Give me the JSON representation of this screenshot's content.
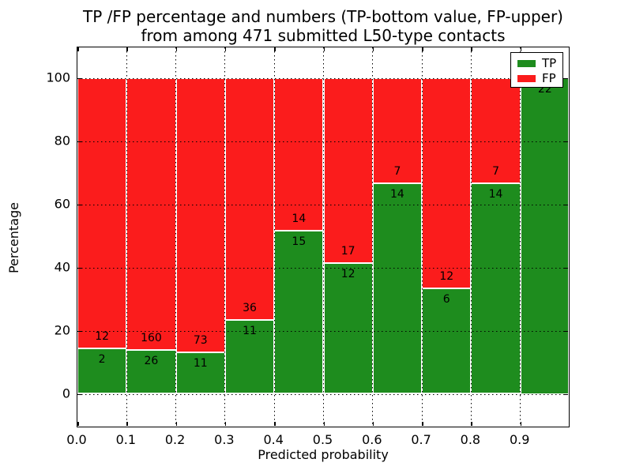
{
  "chart_data": {
    "type": "bar",
    "stacked": true,
    "normalized": "each bin scaled to 100%",
    "title_line1": "TP /FP percentage and numbers (TP-bottom value, FP-upper)",
    "title_line2": "from among 471 submitted L50-type contacts",
    "xlabel": "Predicted probability",
    "ylabel": "Percentage",
    "xlim": [
      0.0,
      1.0
    ],
    "ylim": [
      -10.25,
      110.25
    ],
    "bin_width": 0.1,
    "bin_starts": [
      0.0,
      0.1,
      0.2,
      0.3,
      0.4,
      0.5,
      0.6,
      0.7,
      0.8,
      0.9
    ],
    "xtick_labels": [
      "0.0",
      "0.1",
      "0.2",
      "0.3",
      "0.4",
      "0.5",
      "0.6",
      "0.7",
      "0.8",
      "0.9"
    ],
    "ytick_values": [
      0,
      20,
      40,
      60,
      80,
      100
    ],
    "grid": "dotted, drawn over bars",
    "series": [
      {
        "name": "TP",
        "color": "#1e8c1e",
        "values": [
          2,
          26,
          11,
          11,
          15,
          12,
          14,
          6,
          14,
          22
        ]
      },
      {
        "name": "FP",
        "color": "#fb1c1c",
        "values": [
          12,
          160,
          73,
          36,
          14,
          17,
          7,
          12,
          7,
          0
        ]
      }
    ],
    "tp_percent": [
      14.29,
      13.98,
      13.1,
      23.4,
      51.72,
      41.38,
      66.67,
      33.33,
      66.67,
      100.0
    ],
    "total_contacts": 471,
    "bar_edge_color": "#ffffff",
    "legend": {
      "position": "upper-right",
      "entries": [
        {
          "label": "TP",
          "color": "#1e8c1e"
        },
        {
          "label": "FP",
          "color": "#fb1c1c"
        }
      ]
    }
  }
}
